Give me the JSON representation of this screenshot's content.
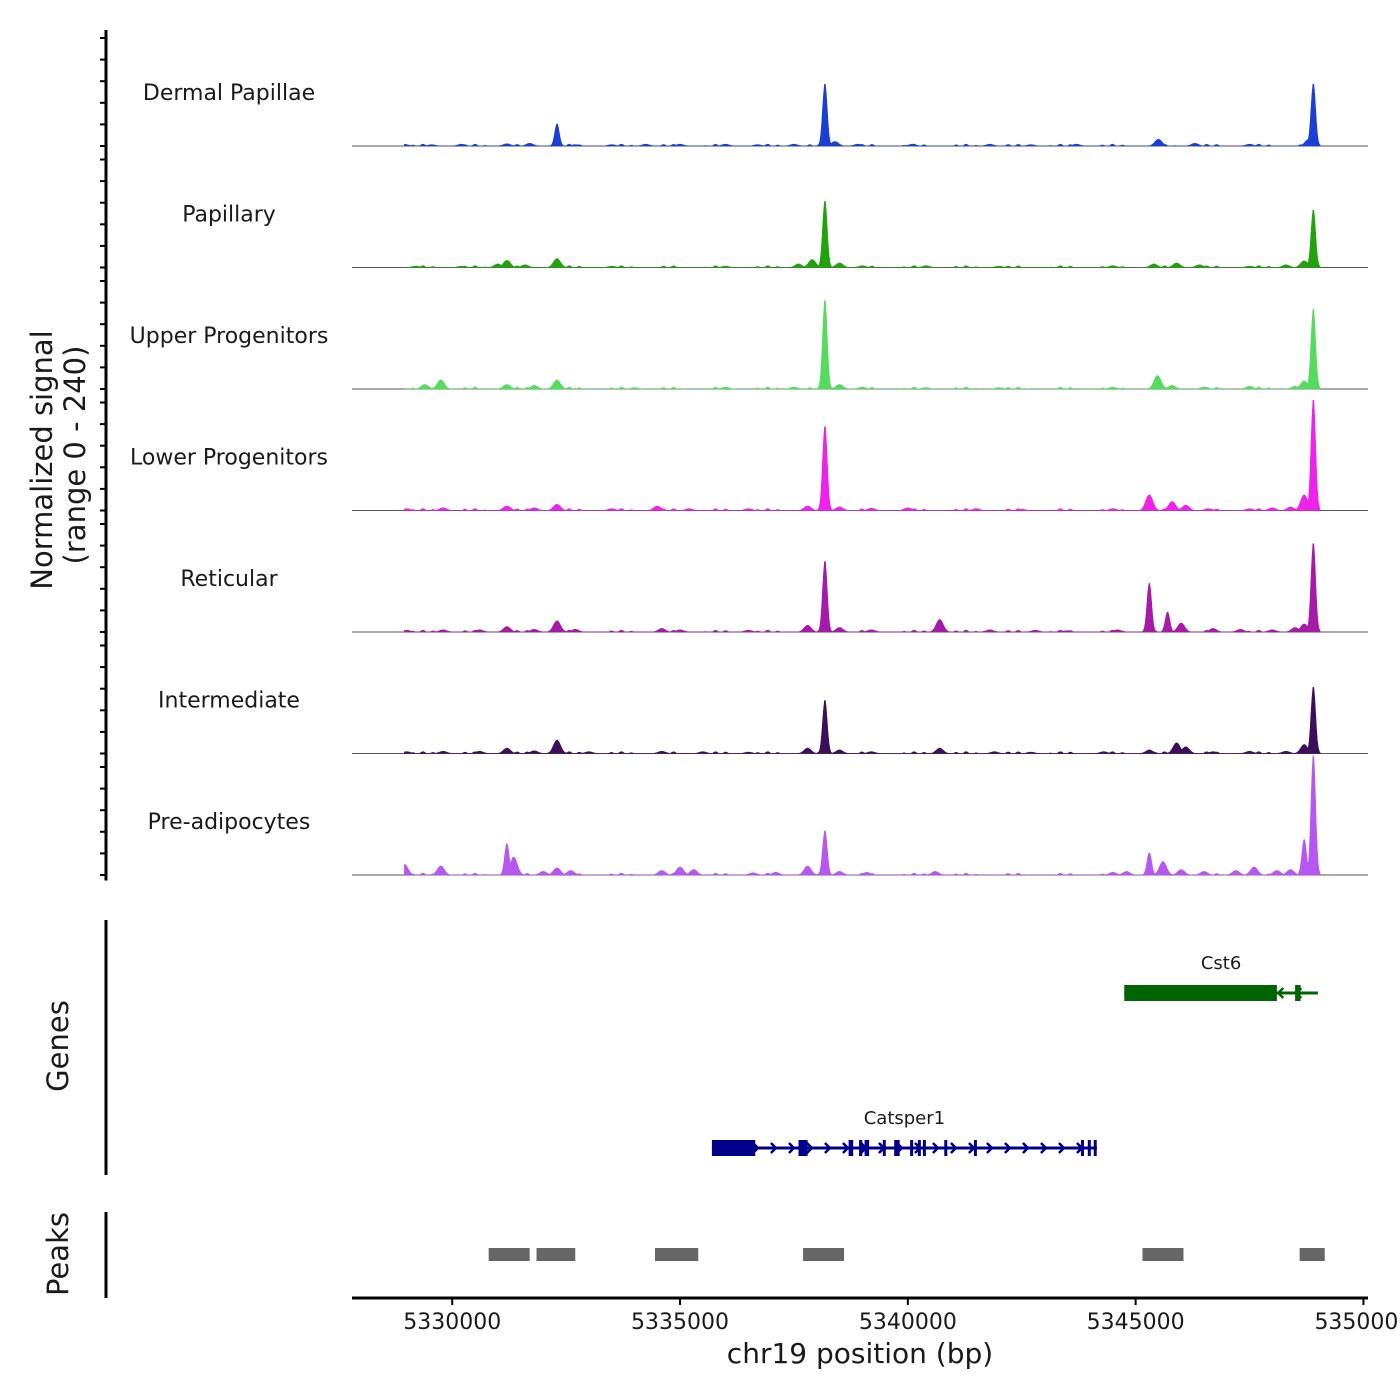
{
  "chart_data": {
    "type": "area",
    "title": "",
    "xlabel": "chr19 position (bp)",
    "ylabel_line1": "Normalized signal",
    "ylabel_line2": "(range 0 - 240)",
    "genes_label": "Genes",
    "peaks_label": "Peaks",
    "xlim": [
      5327800,
      5350100
    ],
    "ylim": [
      0,
      240
    ],
    "x_ticks": [
      5330000,
      5335000,
      5340000,
      5345000,
      5350000
    ],
    "x_tick_labels": [
      "5330000",
      "5335000",
      "5340000",
      "5345000",
      "5350000"
    ],
    "tracks": [
      {
        "name": "Dermal Papillae",
        "color": "#1a3fd6",
        "peaks": [
          [
            5328950,
            4
          ],
          [
            5329550,
            3
          ],
          [
            5330200,
            4
          ],
          [
            5331200,
            5
          ],
          [
            5331700,
            6
          ],
          [
            5332300,
            50
          ],
          [
            5332700,
            3
          ],
          [
            5333500,
            3
          ],
          [
            5334250,
            4
          ],
          [
            5335000,
            4
          ],
          [
            5336000,
            4
          ],
          [
            5336700,
            3
          ],
          [
            5337500,
            4
          ],
          [
            5338180,
            140
          ],
          [
            5338400,
            10
          ],
          [
            5338900,
            4
          ],
          [
            5340100,
            4
          ],
          [
            5341800,
            4
          ],
          [
            5342700,
            3
          ],
          [
            5343700,
            4
          ],
          [
            5345500,
            15
          ],
          [
            5346300,
            6
          ],
          [
            5347500,
            4
          ],
          [
            5348800,
            15
          ],
          [
            5348900,
            140
          ]
        ]
      },
      {
        "name": "Papillary",
        "color": "#22a30e",
        "peaks": [
          [
            5329200,
            3
          ],
          [
            5330200,
            3
          ],
          [
            5331000,
            8
          ],
          [
            5331200,
            16
          ],
          [
            5331600,
            6
          ],
          [
            5332300,
            20
          ],
          [
            5333500,
            3
          ],
          [
            5336000,
            3
          ],
          [
            5337600,
            8
          ],
          [
            5337900,
            18
          ],
          [
            5338180,
            150
          ],
          [
            5338500,
            10
          ],
          [
            5339000,
            4
          ],
          [
            5340400,
            4
          ],
          [
            5342000,
            3
          ],
          [
            5344500,
            4
          ],
          [
            5345400,
            8
          ],
          [
            5345900,
            10
          ],
          [
            5346400,
            6
          ],
          [
            5347500,
            3
          ],
          [
            5348300,
            6
          ],
          [
            5348700,
            15
          ],
          [
            5348900,
            130
          ]
        ]
      },
      {
        "name": "Upper Progenitors",
        "color": "#55dc5f",
        "peaks": [
          [
            5329400,
            10
          ],
          [
            5329750,
            20
          ],
          [
            5331200,
            10
          ],
          [
            5331800,
            8
          ],
          [
            5332300,
            20
          ],
          [
            5334000,
            3
          ],
          [
            5336000,
            4
          ],
          [
            5337500,
            4
          ],
          [
            5338180,
            200
          ],
          [
            5338500,
            10
          ],
          [
            5339000,
            4
          ],
          [
            5340400,
            3
          ],
          [
            5342000,
            3
          ],
          [
            5344500,
            4
          ],
          [
            5345480,
            30
          ],
          [
            5345800,
            8
          ],
          [
            5346500,
            4
          ],
          [
            5347500,
            6
          ],
          [
            5348500,
            6
          ],
          [
            5348700,
            18
          ],
          [
            5348900,
            180
          ]
        ]
      },
      {
        "name": "Lower Progenitors",
        "color": "#ee22ea",
        "peaks": [
          [
            5329000,
            4
          ],
          [
            5329800,
            6
          ],
          [
            5331200,
            10
          ],
          [
            5331800,
            6
          ],
          [
            5332300,
            14
          ],
          [
            5333500,
            4
          ],
          [
            5334500,
            10
          ],
          [
            5335200,
            4
          ],
          [
            5336500,
            4
          ],
          [
            5337800,
            10
          ],
          [
            5338180,
            190
          ],
          [
            5338500,
            8
          ],
          [
            5339200,
            5
          ],
          [
            5340000,
            6
          ],
          [
            5341500,
            4
          ],
          [
            5342500,
            3
          ],
          [
            5344500,
            4
          ],
          [
            5345300,
            35
          ],
          [
            5345800,
            20
          ],
          [
            5346100,
            12
          ],
          [
            5346600,
            4
          ],
          [
            5347500,
            4
          ],
          [
            5348000,
            6
          ],
          [
            5348400,
            8
          ],
          [
            5348700,
            35
          ],
          [
            5348900,
            250
          ]
        ]
      },
      {
        "name": "Reticular",
        "color": "#a51aa8",
        "peaks": [
          [
            5329000,
            4
          ],
          [
            5329800,
            5
          ],
          [
            5330600,
            5
          ],
          [
            5331200,
            12
          ],
          [
            5331800,
            6
          ],
          [
            5332300,
            25
          ],
          [
            5332700,
            6
          ],
          [
            5334600,
            8
          ],
          [
            5335000,
            5
          ],
          [
            5336500,
            4
          ],
          [
            5337800,
            15
          ],
          [
            5338180,
            160
          ],
          [
            5338500,
            10
          ],
          [
            5339200,
            5
          ],
          [
            5340700,
            28
          ],
          [
            5341800,
            5
          ],
          [
            5342800,
            4
          ],
          [
            5343500,
            3
          ],
          [
            5344600,
            5
          ],
          [
            5345300,
            110
          ],
          [
            5345700,
            45
          ],
          [
            5346000,
            20
          ],
          [
            5346700,
            8
          ],
          [
            5347300,
            6
          ],
          [
            5348000,
            5
          ],
          [
            5348500,
            10
          ],
          [
            5348700,
            18
          ],
          [
            5348900,
            200
          ]
        ]
      },
      {
        "name": "Intermediate",
        "color": "#3c0f5a",
        "peaks": [
          [
            5329000,
            4
          ],
          [
            5329800,
            5
          ],
          [
            5330600,
            5
          ],
          [
            5331200,
            12
          ],
          [
            5331800,
            6
          ],
          [
            5332300,
            30
          ],
          [
            5333000,
            4
          ],
          [
            5334600,
            5
          ],
          [
            5335500,
            4
          ],
          [
            5336500,
            3
          ],
          [
            5337800,
            12
          ],
          [
            5338180,
            120
          ],
          [
            5338500,
            8
          ],
          [
            5339200,
            4
          ],
          [
            5340700,
            12
          ],
          [
            5341900,
            4
          ],
          [
            5342700,
            3
          ],
          [
            5344300,
            4
          ],
          [
            5345300,
            8
          ],
          [
            5345900,
            24
          ],
          [
            5346100,
            15
          ],
          [
            5346700,
            4
          ],
          [
            5347500,
            5
          ],
          [
            5348300,
            5
          ],
          [
            5348700,
            20
          ],
          [
            5348900,
            150
          ]
        ]
      },
      {
        "name": "Pre-adipocytes",
        "color": "#b658f0",
        "peaks": [
          [
            5328950,
            24
          ],
          [
            5329750,
            20
          ],
          [
            5331200,
            70
          ],
          [
            5331350,
            40
          ],
          [
            5332000,
            8
          ],
          [
            5332300,
            16
          ],
          [
            5332600,
            10
          ],
          [
            5334600,
            10
          ],
          [
            5335000,
            18
          ],
          [
            5335300,
            12
          ],
          [
            5336600,
            5
          ],
          [
            5337100,
            6
          ],
          [
            5337800,
            20
          ],
          [
            5338180,
            100
          ],
          [
            5338500,
            8
          ],
          [
            5339100,
            6
          ],
          [
            5340600,
            8
          ],
          [
            5344500,
            6
          ],
          [
            5344800,
            8
          ],
          [
            5345300,
            50
          ],
          [
            5345600,
            30
          ],
          [
            5346000,
            12
          ],
          [
            5346500,
            8
          ],
          [
            5347200,
            10
          ],
          [
            5347600,
            18
          ],
          [
            5348100,
            10
          ],
          [
            5348400,
            12
          ],
          [
            5348700,
            80
          ],
          [
            5348900,
            270
          ]
        ]
      }
    ],
    "genes": [
      {
        "name": "Cst6",
        "color": "#006400",
        "strand": "-",
        "start": 5344750,
        "end": 5349000,
        "exons": [
          [
            5344750,
            5348100
          ],
          [
            5348500,
            5348620
          ]
        ]
      },
      {
        "name": "Catsper1",
        "color": "#00008b",
        "strand": "+",
        "start": 5335700,
        "end": 5344150,
        "exons": [
          [
            5335700,
            5336650
          ],
          [
            5337600,
            5337800
          ],
          [
            5338700,
            5338800
          ],
          [
            5338930,
            5339000
          ],
          [
            5339050,
            5339150
          ],
          [
            5339450,
            5339500
          ],
          [
            5339700,
            5339820
          ],
          [
            5340050,
            5340100
          ],
          [
            5340220,
            5340280
          ],
          [
            5340330,
            5340380
          ],
          [
            5340800,
            5340860
          ],
          [
            5341450,
            5341500
          ],
          [
            5343800,
            5343860
          ],
          [
            5343950,
            5344010
          ],
          [
            5344080,
            5344140
          ]
        ]
      }
    ],
    "peak_regions": [
      [
        5330800,
        5331700
      ],
      [
        5331850,
        5332700
      ],
      [
        5334450,
        5335400
      ],
      [
        5337700,
        5338600
      ],
      [
        5345150,
        5346050
      ],
      [
        5348600,
        5349150
      ]
    ]
  }
}
